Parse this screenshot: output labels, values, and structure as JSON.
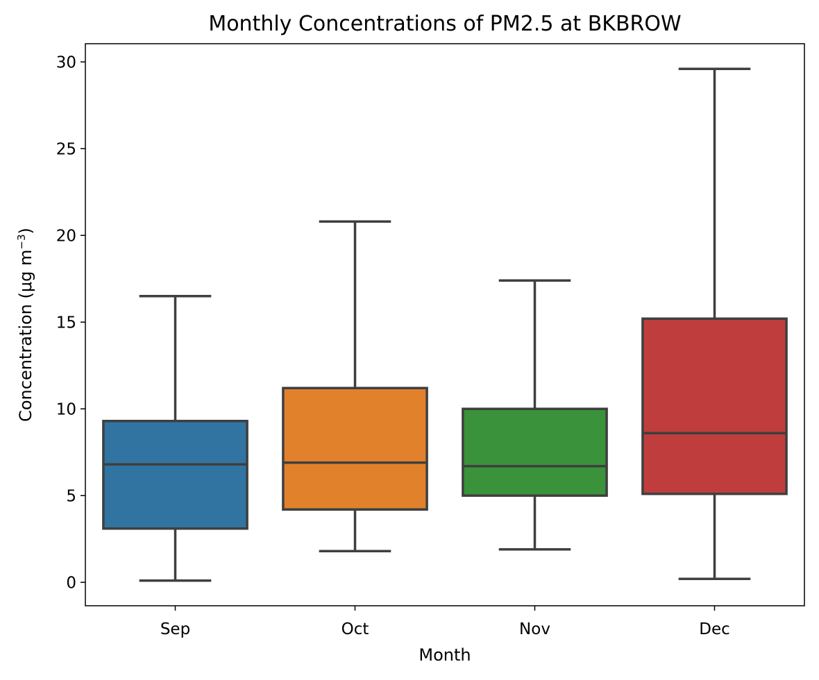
{
  "chart_data": {
    "type": "box",
    "title": "Monthly Concentrations of PM2.5 at BKBROW",
    "xlabel": "Month",
    "ylabel": {
      "main": "Concentration (μg m",
      "superscript": "−3",
      "suffix": ")"
    },
    "ylim": [
      -1.35,
      31.05
    ],
    "yticks": [
      0,
      5,
      10,
      15,
      20,
      25,
      30
    ],
    "grid": false,
    "categories": [
      "Sep",
      "Oct",
      "Nov",
      "Dec"
    ],
    "boxes": [
      {
        "category": "Sep",
        "whisker_low": 0.1,
        "q1": 3.1,
        "median": 6.8,
        "q3": 9.3,
        "whisker_high": 16.5,
        "color": "#3274a1"
      },
      {
        "category": "Oct",
        "whisker_low": 1.8,
        "q1": 4.2,
        "median": 6.9,
        "q3": 11.2,
        "whisker_high": 20.8,
        "color": "#e1812c"
      },
      {
        "category": "Nov",
        "whisker_low": 1.9,
        "q1": 5.0,
        "median": 6.7,
        "q3": 10.0,
        "whisker_high": 17.4,
        "color": "#3a923a"
      },
      {
        "category": "Dec",
        "whisker_low": 0.2,
        "q1": 5.1,
        "median": 8.6,
        "q3": 15.2,
        "whisker_high": 29.6,
        "color": "#c03d3e"
      }
    ],
    "line_color": "#3f3f3f"
  }
}
